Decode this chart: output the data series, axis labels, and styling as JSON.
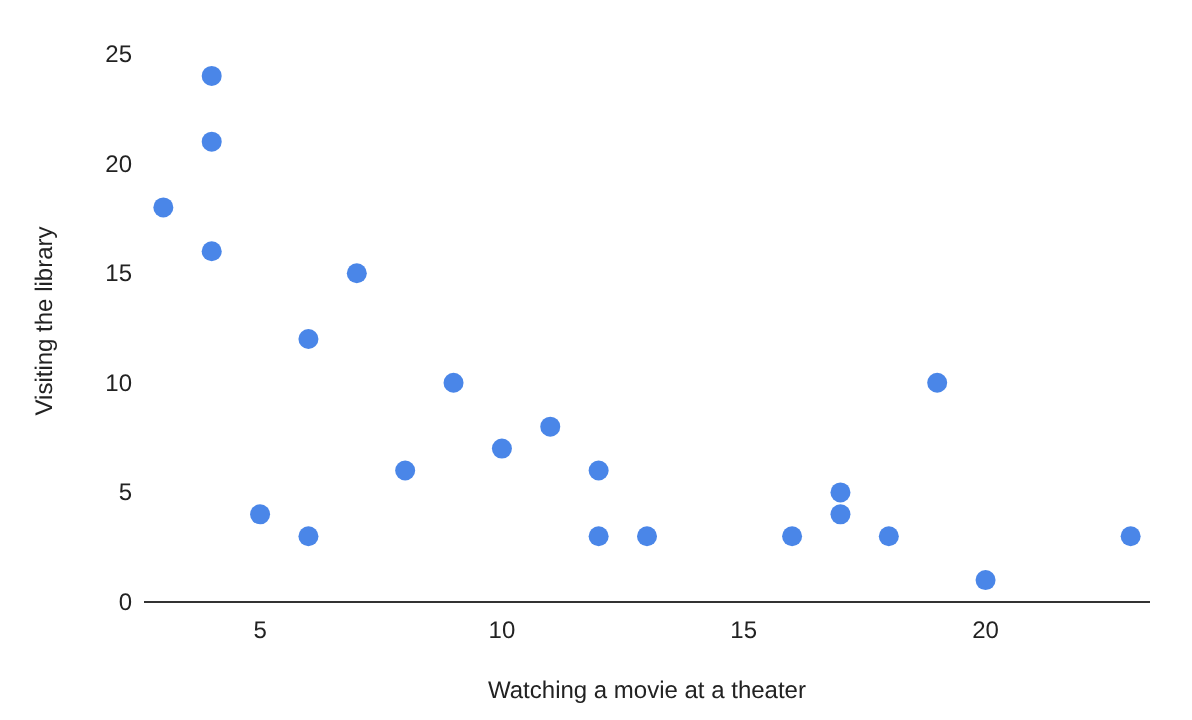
{
  "chart_data": {
    "type": "scatter",
    "xlabel": "Watching a movie at a theater",
    "ylabel": "Visiting the library",
    "x": [
      3,
      4,
      4,
      4,
      5,
      6,
      6,
      7,
      8,
      9,
      10,
      11,
      12,
      12,
      13,
      16,
      17,
      17,
      18,
      19,
      20,
      23
    ],
    "series": [
      {
        "color": "#4a86e8",
        "values": [
          18,
          24,
          21,
          16,
          4,
          12,
          3,
          15,
          6,
          10,
          7,
          8,
          6,
          3,
          3,
          3,
          5,
          4,
          3,
          10,
          1,
          3
        ]
      }
    ],
    "xlim": [
      2.6,
      23.4
    ],
    "xticks": [
      5,
      10,
      15,
      20
    ],
    "ylim": [
      0,
      25
    ],
    "yticks": [
      0,
      5,
      10,
      15,
      20,
      25
    ],
    "marker": "circle"
  }
}
